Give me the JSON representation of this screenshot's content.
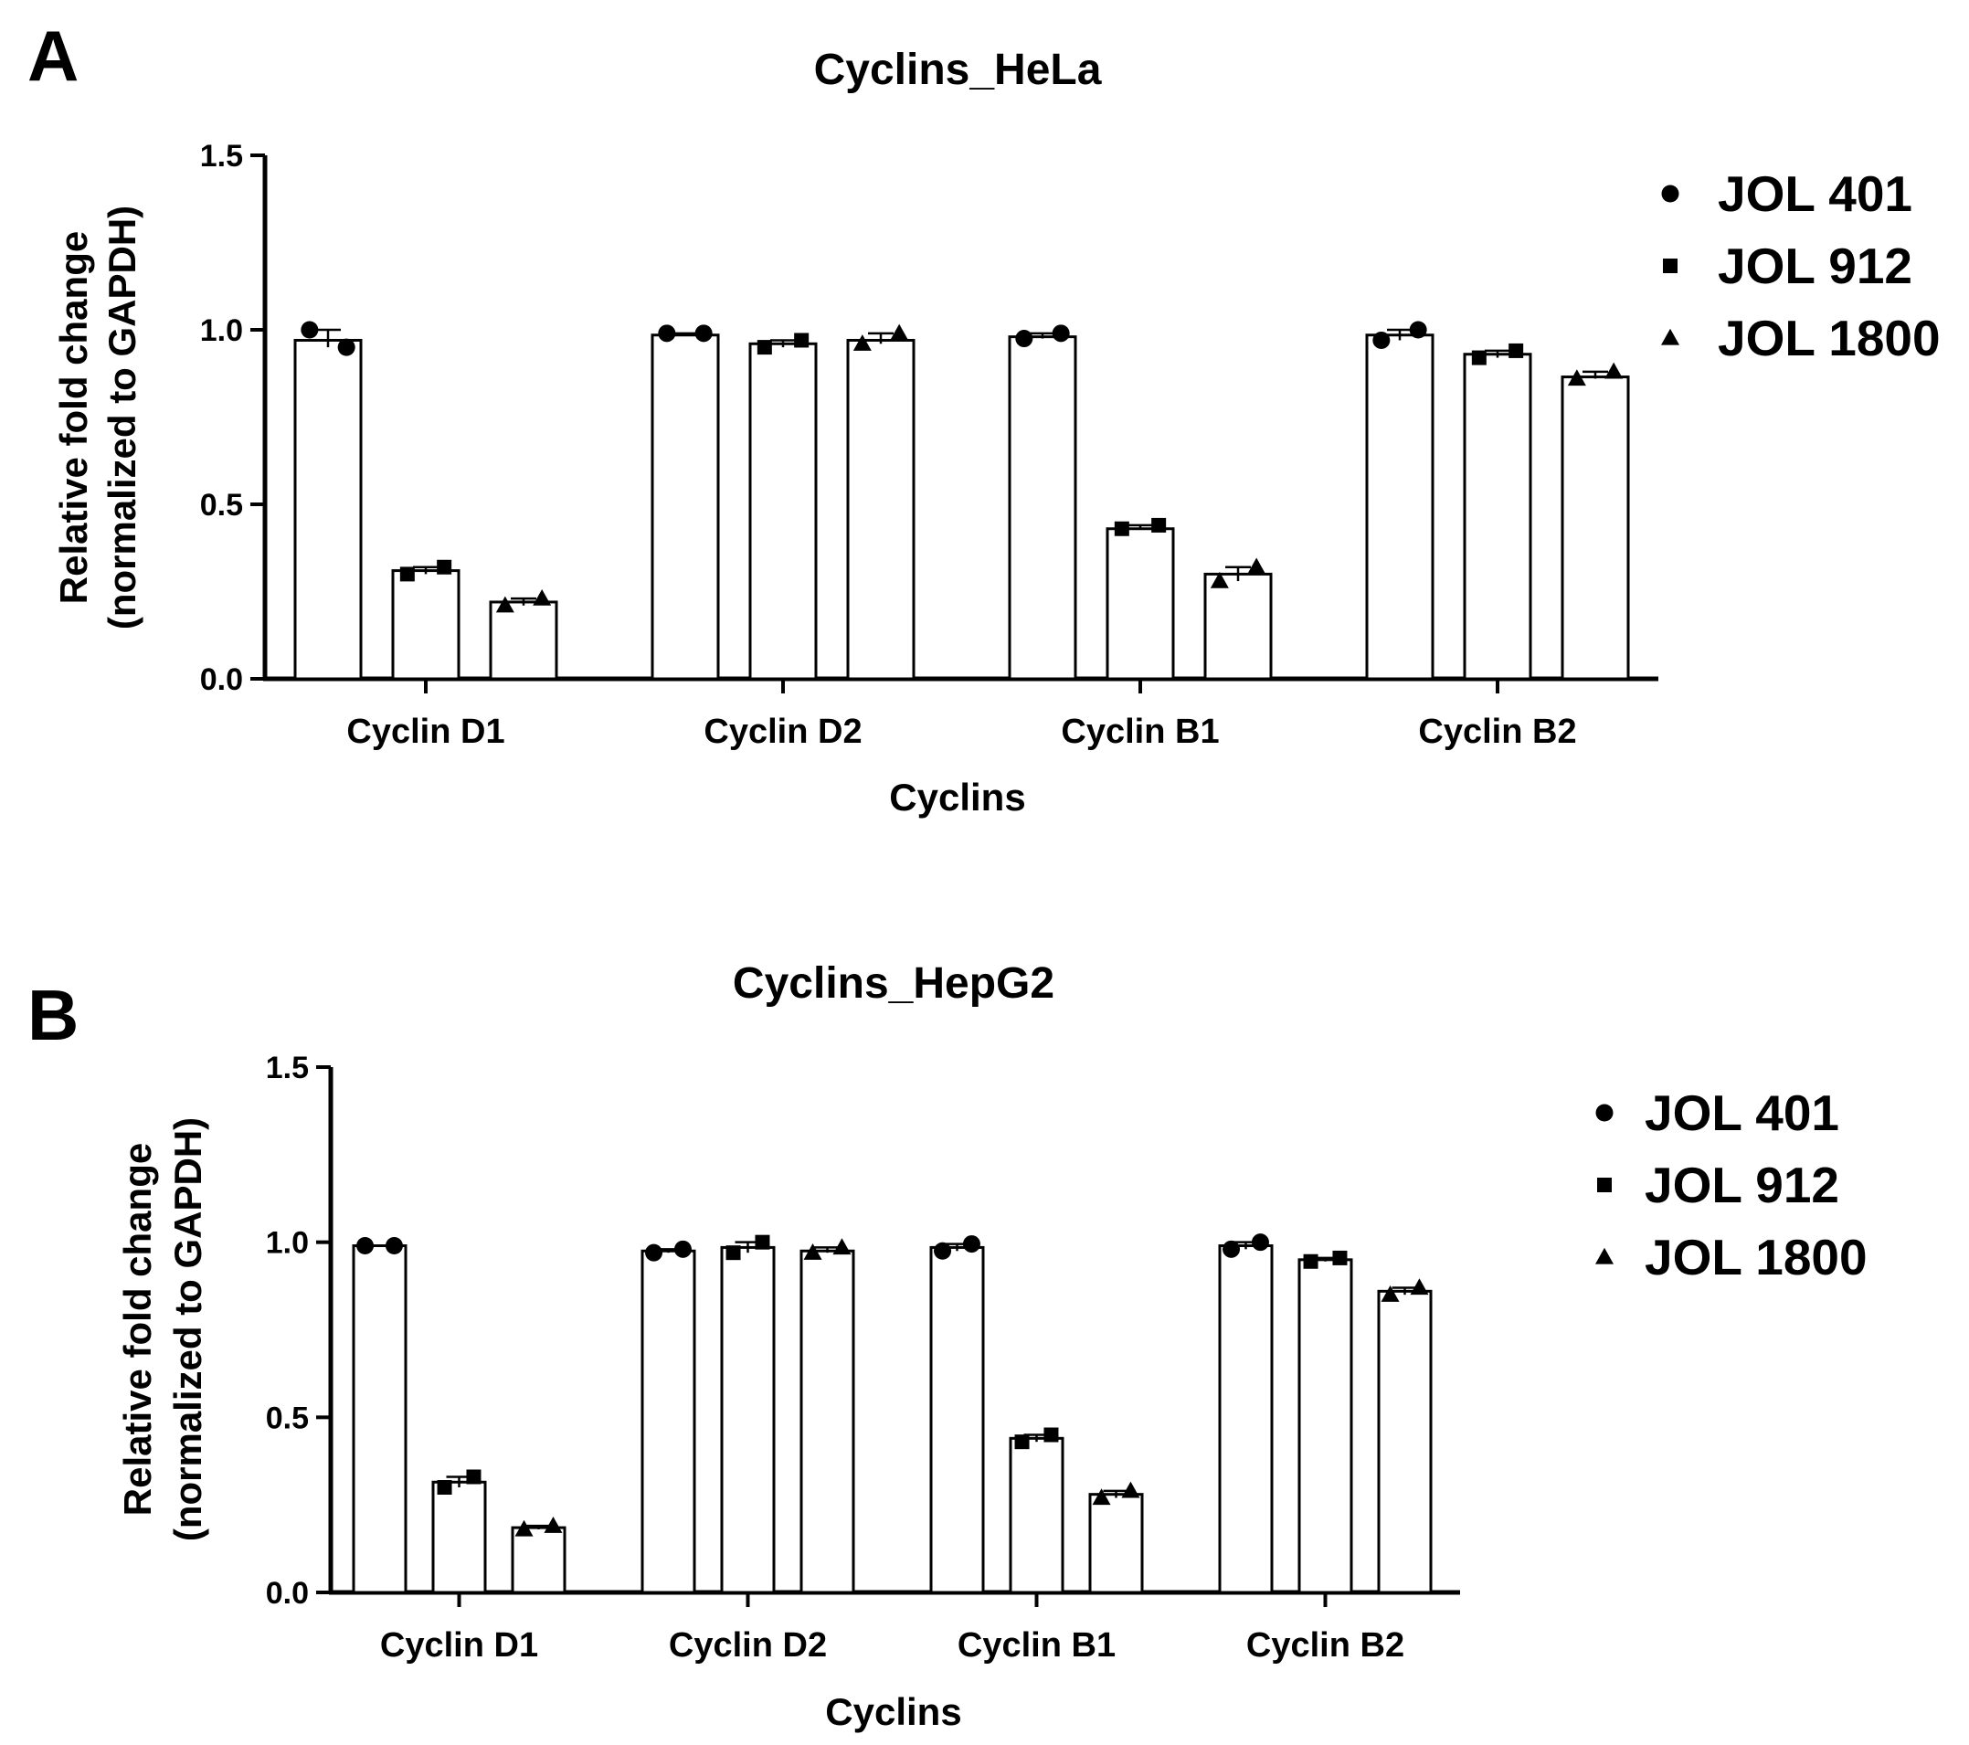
{
  "chart_data": [
    {
      "panel": "A",
      "type": "bar",
      "title": "Cyclins_HeLa",
      "xlabel": "Cyclins",
      "ylabel": [
        "Relative fold change",
        "(normalized to GAPDH)"
      ],
      "ylim": [
        0,
        1.5
      ],
      "yticks": [
        "0.0",
        "0.5",
        "1.0",
        "1.5"
      ],
      "grid": false,
      "legend_position": "right",
      "categories": [
        "Cyclin D1",
        "Cyclin D2",
        "Cyclin B1",
        "Cyclin B2"
      ],
      "series": [
        {
          "name": "JOL 401",
          "marker": "circle",
          "values": [
            0.97,
            0.985,
            0.98,
            0.985
          ],
          "points": [
            [
              1.0,
              0.95
            ],
            [
              0.99,
              0.99
            ],
            [
              0.975,
              0.99
            ],
            [
              0.97,
              1.0
            ]
          ]
        },
        {
          "name": "JOL 912",
          "marker": "square",
          "values": [
            0.31,
            0.96,
            0.43,
            0.93
          ],
          "points": [
            [
              0.3,
              0.32
            ],
            [
              0.95,
              0.97
            ],
            [
              0.43,
              0.44
            ],
            [
              0.92,
              0.94
            ]
          ]
        },
        {
          "name": "JOL 1800",
          "marker": "triangle",
          "values": [
            0.22,
            0.97,
            0.3,
            0.865
          ],
          "points": [
            [
              0.21,
              0.23
            ],
            [
              0.96,
              0.99
            ],
            [
              0.28,
              0.32
            ],
            [
              0.86,
              0.88
            ]
          ]
        }
      ]
    },
    {
      "panel": "B",
      "type": "bar",
      "title": "Cyclins_HepG2",
      "xlabel": "Cyclins",
      "ylabel": [
        "Relative fold change",
        "(normalized to GAPDH)"
      ],
      "ylim": [
        0,
        1.5
      ],
      "yticks": [
        "0.0",
        "0.5",
        "1.0",
        "1.5"
      ],
      "grid": false,
      "legend_position": "right",
      "categories": [
        "Cyclin D1",
        "Cyclin D2",
        "Cyclin B1",
        "Cyclin B2"
      ],
      "series": [
        {
          "name": "JOL 401",
          "marker": "circle",
          "values": [
            0.99,
            0.975,
            0.985,
            0.99
          ],
          "points": [
            [
              0.99,
              0.99
            ],
            [
              0.97,
              0.98
            ],
            [
              0.975,
              0.995
            ],
            [
              0.98,
              1.0
            ]
          ]
        },
        {
          "name": "JOL 912",
          "marker": "square",
          "values": [
            0.315,
            0.985,
            0.44,
            0.95
          ],
          "points": [
            [
              0.3,
              0.33
            ],
            [
              0.97,
              1.0
            ],
            [
              0.43,
              0.45
            ],
            [
              0.945,
              0.955
            ]
          ]
        },
        {
          "name": "JOL 1800",
          "marker": "triangle",
          "values": [
            0.185,
            0.975,
            0.28,
            0.86
          ],
          "points": [
            [
              0.18,
              0.19
            ],
            [
              0.97,
              0.985
            ],
            [
              0.27,
              0.29
            ],
            [
              0.85,
              0.87
            ]
          ]
        }
      ]
    }
  ]
}
